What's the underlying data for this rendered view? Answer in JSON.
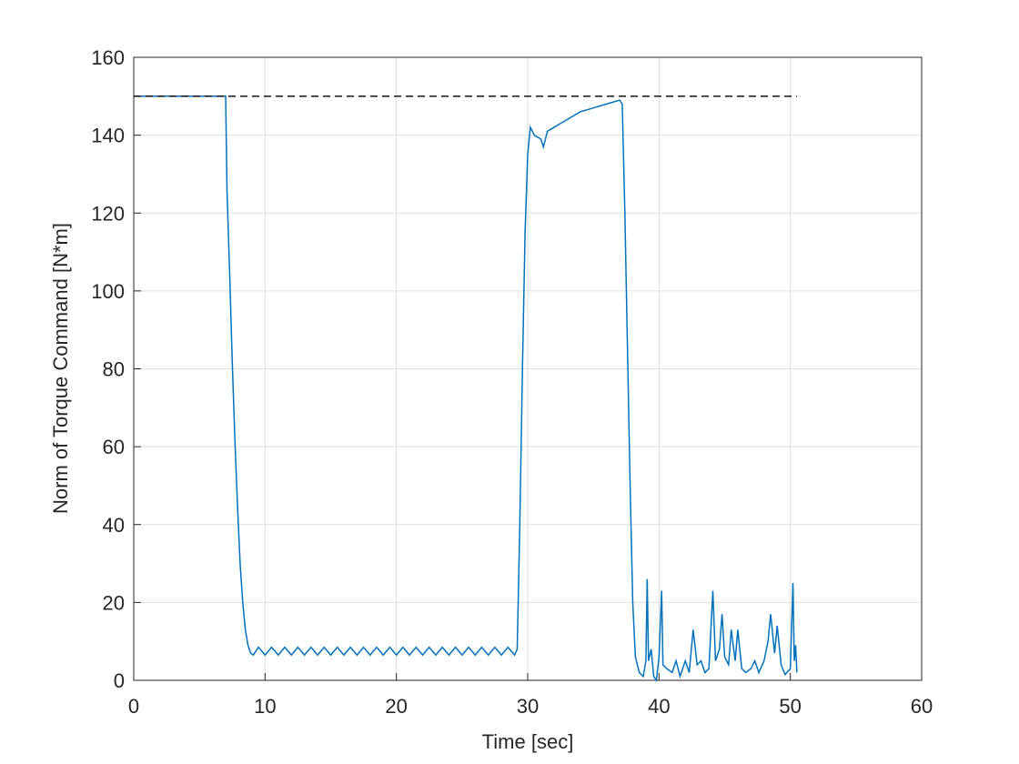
{
  "chart_data": {
    "type": "line",
    "xlabel": "Time [sec]",
    "ylabel": "Norm of Torque Command [N*m]",
    "xlim": [
      0,
      60
    ],
    "xticks": [
      0,
      10,
      20,
      30,
      40,
      50,
      60
    ],
    "ylim": [
      0,
      160
    ],
    "yticks": [
      0,
      20,
      40,
      60,
      80,
      100,
      120,
      140,
      160
    ],
    "grid": true,
    "series": [
      {
        "color": "#0072bd",
        "dash": false,
        "x": [
          0,
          7.0,
          7.1,
          7.3,
          7.5,
          7.7,
          7.9,
          8.1,
          8.3,
          8.5,
          8.7,
          8.9,
          9.1,
          9.5,
          10,
          10.5,
          11,
          11.5,
          12,
          12.5,
          13,
          13.5,
          14,
          14.5,
          15,
          15.5,
          16,
          16.5,
          17,
          17.5,
          18,
          18.5,
          19,
          19.5,
          20,
          20.5,
          21,
          21.5,
          22,
          22.5,
          23,
          23.5,
          24,
          24.5,
          25,
          25.5,
          26,
          26.5,
          27,
          27.5,
          28,
          28.5,
          29,
          29.2,
          29.4,
          29.6,
          29.8,
          30.0,
          30.2,
          30.5,
          31,
          31.2,
          31.5,
          32,
          32.5,
          33,
          33.5,
          34,
          34.5,
          35,
          35.5,
          36,
          36.5,
          37,
          37.2,
          37.4,
          37.6,
          37.8,
          38,
          38.2,
          38.5,
          38.8,
          39,
          39.1,
          39.2,
          39.4,
          39.6,
          39.8,
          40,
          40.2,
          40.3,
          40.6,
          41,
          41.3,
          41.6,
          42,
          42.3,
          42.6,
          42.9,
          43.2,
          43.5,
          43.8,
          44.1,
          44.3,
          44.6,
          44.8,
          45,
          45.3,
          45.5,
          45.8,
          46,
          46.3,
          46.6,
          47,
          47.3,
          47.6,
          48,
          48.3,
          48.5,
          48.8,
          49,
          49.3,
          49.6,
          50,
          50.2,
          50.3,
          50.4,
          50.5
        ],
        "values": [
          150,
          150,
          126,
          105,
          82,
          62,
          45,
          30,
          20,
          13,
          9,
          7,
          6.5,
          8.5,
          6.5,
          8.5,
          6.5,
          8.5,
          6.5,
          8.5,
          6.5,
          8.5,
          6.5,
          8.5,
          6.5,
          8.5,
          6.5,
          8.5,
          6.5,
          8.5,
          6.5,
          8.5,
          6.5,
          8.5,
          6.5,
          8.5,
          6.5,
          8.5,
          6.5,
          8.5,
          6.5,
          8.5,
          6.5,
          8.5,
          6.5,
          8.5,
          6.5,
          8.5,
          6.5,
          8.5,
          6.5,
          8.5,
          6.5,
          8,
          40,
          80,
          115,
          135,
          142,
          140,
          139,
          137,
          141,
          142,
          143,
          144,
          145,
          146,
          146.5,
          147,
          147.5,
          148,
          148.5,
          149,
          148,
          120,
          85,
          50,
          20,
          6,
          2,
          1,
          5,
          26,
          5,
          8,
          1,
          0,
          6,
          23,
          4,
          3,
          2,
          5,
          1,
          5,
          2,
          13,
          4,
          5,
          2,
          3,
          23,
          5,
          8,
          17,
          6,
          4,
          13,
          5,
          13,
          3,
          2,
          3,
          5,
          2,
          5,
          10,
          17,
          7,
          14,
          4,
          1.5,
          3,
          25,
          5,
          9,
          2
        ]
      },
      {
        "color": "#000000",
        "dash": true,
        "x": [
          0,
          50.5
        ],
        "values": [
          150,
          150
        ]
      }
    ]
  }
}
